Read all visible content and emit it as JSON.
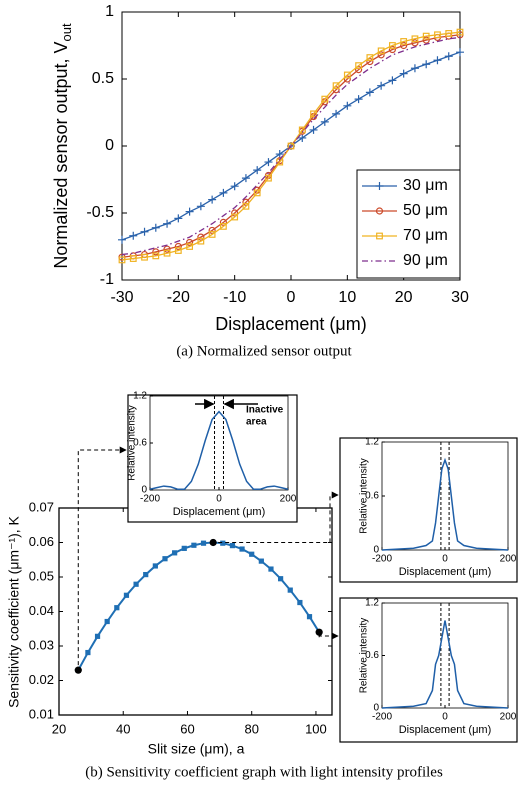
{
  "chart_data": [
    {
      "type": "line",
      "caption": "(a) Normalized sensor output",
      "x_label": "Displacement (μm)",
      "y_label": "Normalized sensor output, V",
      "y_label_sub": "out",
      "x": [
        -30,
        -28,
        -26,
        -24,
        -22,
        -20,
        -18,
        -16,
        -14,
        -12,
        -10,
        -8,
        -6,
        -4,
        -2,
        0,
        2,
        4,
        6,
        8,
        10,
        12,
        14,
        16,
        18,
        20,
        22,
        24,
        26,
        28,
        30
      ],
      "xlim": [
        -30,
        30
      ],
      "xticks": [
        -30,
        -20,
        -10,
        0,
        10,
        20,
        30
      ],
      "ylim": [
        -1,
        1
      ],
      "yticks": [
        -1,
        -0.5,
        0,
        0.5,
        1
      ],
      "grid": false,
      "legend": "lower right",
      "series": [
        {
          "name": "30 μm",
          "color": "#2a62ab",
          "marker": "+",
          "dash": "solid",
          "values": [
            -0.7,
            -0.67,
            -0.64,
            -0.61,
            -0.58,
            -0.54,
            -0.49,
            -0.45,
            -0.4,
            -0.35,
            -0.3,
            -0.24,
            -0.18,
            -0.12,
            -0.06,
            0,
            0.06,
            0.12,
            0.18,
            0.24,
            0.3,
            0.35,
            0.4,
            0.45,
            0.49,
            0.54,
            0.58,
            0.61,
            0.64,
            0.67,
            0.7
          ]
        },
        {
          "name": "50 μm",
          "color": "#cc4a2a",
          "marker": "o",
          "dash": "solid",
          "values": [
            -0.83,
            -0.82,
            -0.81,
            -0.79,
            -0.77,
            -0.75,
            -0.72,
            -0.68,
            -0.63,
            -0.57,
            -0.5,
            -0.42,
            -0.33,
            -0.22,
            -0.11,
            0,
            0.11,
            0.22,
            0.33,
            0.42,
            0.5,
            0.57,
            0.63,
            0.68,
            0.72,
            0.75,
            0.77,
            0.79,
            0.81,
            0.82,
            0.83
          ]
        },
        {
          "name": "70 μm",
          "color": "#f0b323",
          "marker": "s",
          "dash": "solid",
          "values": [
            -0.85,
            -0.84,
            -0.83,
            -0.82,
            -0.8,
            -0.78,
            -0.75,
            -0.71,
            -0.66,
            -0.6,
            -0.53,
            -0.45,
            -0.35,
            -0.24,
            -0.12,
            0,
            0.12,
            0.24,
            0.35,
            0.45,
            0.53,
            0.6,
            0.66,
            0.71,
            0.75,
            0.78,
            0.8,
            0.82,
            0.83,
            0.84,
            0.85
          ]
        },
        {
          "name": "90 μm",
          "color": "#7e2f8e",
          "marker": "none",
          "dash": "dashdot",
          "values": [
            -0.81,
            -0.8,
            -0.78,
            -0.76,
            -0.74,
            -0.71,
            -0.68,
            -0.63,
            -0.58,
            -0.52,
            -0.46,
            -0.38,
            -0.29,
            -0.2,
            -0.1,
            0,
            0.1,
            0.2,
            0.29,
            0.38,
            0.46,
            0.52,
            0.58,
            0.63,
            0.68,
            0.71,
            0.74,
            0.76,
            0.78,
            0.8,
            0.81
          ]
        }
      ]
    },
    {
      "type": "line",
      "caption": "(b) Sensitivity coefficient graph with light intensity profiles",
      "x_label": "Slit size (μm), a",
      "y_label": "Sensitivity coefficient (μm⁻¹), K",
      "x": [
        26,
        29,
        32,
        35,
        38,
        41,
        44,
        47,
        50,
        53,
        56,
        59,
        62,
        65,
        68,
        71,
        74,
        77,
        80,
        83,
        86,
        89,
        92,
        95,
        98,
        101
      ],
      "values": [
        0.023,
        0.0281,
        0.0328,
        0.0371,
        0.0411,
        0.0447,
        0.0479,
        0.0507,
        0.0532,
        0.0553,
        0.057,
        0.0583,
        0.0592,
        0.0598,
        0.06,
        0.0598,
        0.0591,
        0.0581,
        0.0566,
        0.0546,
        0.0523,
        0.0495,
        0.0462,
        0.0426,
        0.0385,
        0.034
      ],
      "color": "#1f6fb4",
      "xlim": [
        20,
        105
      ],
      "xticks": [
        20,
        40,
        60,
        80,
        100
      ],
      "ylim": [
        0.01,
        0.07
      ],
      "yticks": [
        0.01,
        0.02,
        0.03,
        0.04,
        0.05,
        0.06,
        0.07
      ],
      "grid": false
    },
    {
      "type": "profile",
      "x_label": "Displacement (μm)",
      "y_label": "Relative intensity",
      "annotation": [
        "Inactive",
        "area"
      ],
      "x": [
        -200,
        -180,
        -160,
        -140,
        -120,
        -100,
        -80,
        -60,
        -40,
        -20,
        0,
        20,
        40,
        60,
        80,
        100,
        120,
        140,
        160,
        180,
        200
      ],
      "values": [
        0.01,
        0.03,
        0.05,
        0.04,
        0.01,
        0.01,
        0.11,
        0.33,
        0.63,
        0.9,
        1.0,
        0.9,
        0.63,
        0.33,
        0.11,
        0.01,
        0.01,
        0.04,
        0.05,
        0.03,
        0.01
      ],
      "color": "#1f5fa8",
      "inactive_area": [
        -13,
        13
      ],
      "xlim": [
        -200,
        200
      ],
      "xticks": [
        -200,
        0,
        200
      ],
      "ylim": [
        0,
        1.2
      ],
      "yticks": [
        0,
        0.6,
        1.2
      ]
    },
    {
      "type": "profile",
      "x_label": "Displacement (μm)",
      "y_label": "Relative intensity",
      "x": [
        -200,
        -150,
        -100,
        -60,
        -40,
        -30,
        -20,
        -10,
        0,
        10,
        20,
        30,
        40,
        60,
        100,
        150,
        200
      ],
      "values": [
        0,
        0.01,
        0.02,
        0.05,
        0.1,
        0.3,
        0.6,
        0.9,
        1.0,
        0.9,
        0.6,
        0.3,
        0.1,
        0.05,
        0.02,
        0.01,
        0
      ],
      "color": "#1f5fa8",
      "inactive_area": [
        -13,
        13
      ],
      "xlim": [
        -200,
        200
      ],
      "xticks": [
        -200,
        0,
        200
      ],
      "ylim": [
        0,
        1.2
      ],
      "yticks": [
        0,
        0.6,
        1.2
      ]
    },
    {
      "type": "profile",
      "x_label": "Displacement (μm)",
      "y_label": "Relative intensity",
      "x": [
        -200,
        -150,
        -100,
        -60,
        -40,
        -30,
        -20,
        -10,
        0,
        10,
        20,
        30,
        40,
        60,
        100,
        150,
        200
      ],
      "values": [
        0,
        0.01,
        0.02,
        0.05,
        0.2,
        0.5,
        0.6,
        0.8,
        1.0,
        0.8,
        0.6,
        0.5,
        0.2,
        0.05,
        0.02,
        0.01,
        0
      ],
      "color": "#1f5fa8",
      "inactive_area": [
        -13,
        13
      ],
      "xlim": [
        -200,
        200
      ],
      "xticks": [
        -200,
        0,
        200
      ],
      "ylim": [
        0,
        1.2
      ],
      "yticks": [
        0,
        0.6,
        1.2
      ]
    }
  ]
}
